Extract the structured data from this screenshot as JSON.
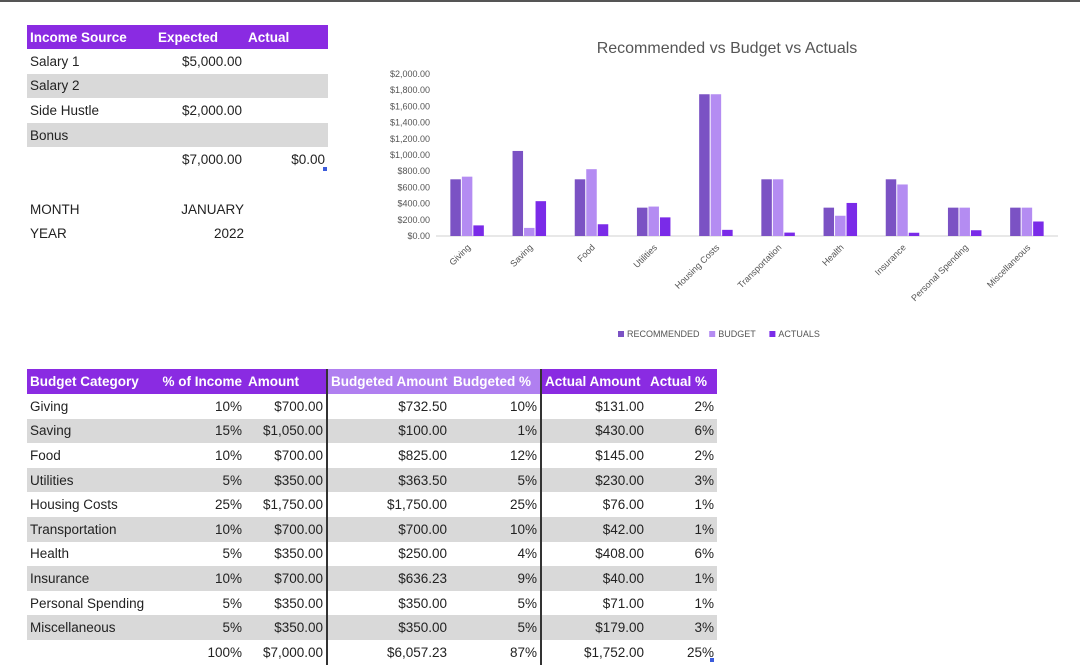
{
  "income": {
    "headers": [
      "Income Source",
      "Expected",
      "Actual"
    ],
    "rows": [
      {
        "source": "Salary 1",
        "expected": "$5,000.00",
        "actual": ""
      },
      {
        "source": "Salary 2",
        "expected": "",
        "actual": ""
      },
      {
        "source": "Side Hustle",
        "expected": "$2,000.00",
        "actual": ""
      },
      {
        "source": "Bonus",
        "expected": "",
        "actual": ""
      }
    ],
    "total_expected": "$7,000.00",
    "total_actual": "$0.00"
  },
  "period": {
    "month_label": "MONTH",
    "month_value": "JANUARY",
    "year_label": "YEAR",
    "year_value": "2022"
  },
  "budget": {
    "headers": [
      "Budget Category",
      "% of Income",
      "Amount",
      "Budgeted Amount",
      "Budgeted %",
      "Actual Amount",
      "Actual %"
    ],
    "rows": [
      {
        "category": "Giving",
        "pct": "10%",
        "amount": "$700.00",
        "budgeted": "$732.50",
        "budgeted_pct": "10%",
        "actual": "$131.00",
        "actual_pct": "2%"
      },
      {
        "category": "Saving",
        "pct": "15%",
        "amount": "$1,050.00",
        "budgeted": "$100.00",
        "budgeted_pct": "1%",
        "actual": "$430.00",
        "actual_pct": "6%"
      },
      {
        "category": "Food",
        "pct": "10%",
        "amount": "$700.00",
        "budgeted": "$825.00",
        "budgeted_pct": "12%",
        "actual": "$145.00",
        "actual_pct": "2%"
      },
      {
        "category": "Utilities",
        "pct": "5%",
        "amount": "$350.00",
        "budgeted": "$363.50",
        "budgeted_pct": "5%",
        "actual": "$230.00",
        "actual_pct": "3%"
      },
      {
        "category": "Housing Costs",
        "pct": "25%",
        "amount": "$1,750.00",
        "budgeted": "$1,750.00",
        "budgeted_pct": "25%",
        "actual": "$76.00",
        "actual_pct": "1%"
      },
      {
        "category": "Transportation",
        "pct": "10%",
        "amount": "$700.00",
        "budgeted": "$700.00",
        "budgeted_pct": "10%",
        "actual": "$42.00",
        "actual_pct": "1%"
      },
      {
        "category": "Health",
        "pct": "5%",
        "amount": "$350.00",
        "budgeted": "$250.00",
        "budgeted_pct": "4%",
        "actual": "$408.00",
        "actual_pct": "6%"
      },
      {
        "category": "Insurance",
        "pct": "10%",
        "amount": "$700.00",
        "budgeted": "$636.23",
        "budgeted_pct": "9%",
        "actual": "$40.00",
        "actual_pct": "1%"
      },
      {
        "category": "Personal Spending",
        "pct": "5%",
        "amount": "$350.00",
        "budgeted": "$350.00",
        "budgeted_pct": "5%",
        "actual": "$71.00",
        "actual_pct": "1%"
      },
      {
        "category": "Miscellaneous",
        "pct": "5%",
        "amount": "$350.00",
        "budgeted": "$350.00",
        "budgeted_pct": "5%",
        "actual": "$179.00",
        "actual_pct": "3%"
      }
    ],
    "totals": {
      "pct": "100%",
      "amount": "$7,000.00",
      "budgeted": "$6,057.23",
      "budgeted_pct": "87%",
      "actual": "$1,752.00",
      "actual_pct": "25%"
    }
  },
  "colors": {
    "header": "#8a2be2",
    "header_mid": "#b07ff0",
    "band": "#d9d9d9",
    "recommended": "#7b52c4",
    "budget": "#b48cf2",
    "actuals": "#7a2be8"
  },
  "chart_data": {
    "type": "bar",
    "title": "Recommended vs Budget vs Actuals",
    "categories": [
      "Giving",
      "Saving",
      "Food",
      "Utilities",
      "Housing Costs",
      "Transportation",
      "Health",
      "Insurance",
      "Personal Spending",
      "Miscellaneous"
    ],
    "series": [
      {
        "name": "RECOMMENDED",
        "values": [
          700,
          1050,
          700,
          350,
          1750,
          700,
          350,
          700,
          350,
          350
        ]
      },
      {
        "name": "BUDGET",
        "values": [
          732.5,
          100,
          825,
          363.5,
          1750,
          700,
          250,
          636.23,
          350,
          350
        ]
      },
      {
        "name": "ACTUALS",
        "values": [
          131,
          430,
          145,
          230,
          76,
          42,
          408,
          40,
          71,
          179
        ]
      }
    ],
    "ylim": [
      0,
      2000
    ],
    "yticks": [
      "$0.00",
      "$200.00",
      "$400.00",
      "$600.00",
      "$800.00",
      "$1,000.00",
      "$1,200.00",
      "$1,400.00",
      "$1,600.00",
      "$1,800.00",
      "$2,000.00"
    ],
    "legend_position": "bottom",
    "grid": false
  }
}
